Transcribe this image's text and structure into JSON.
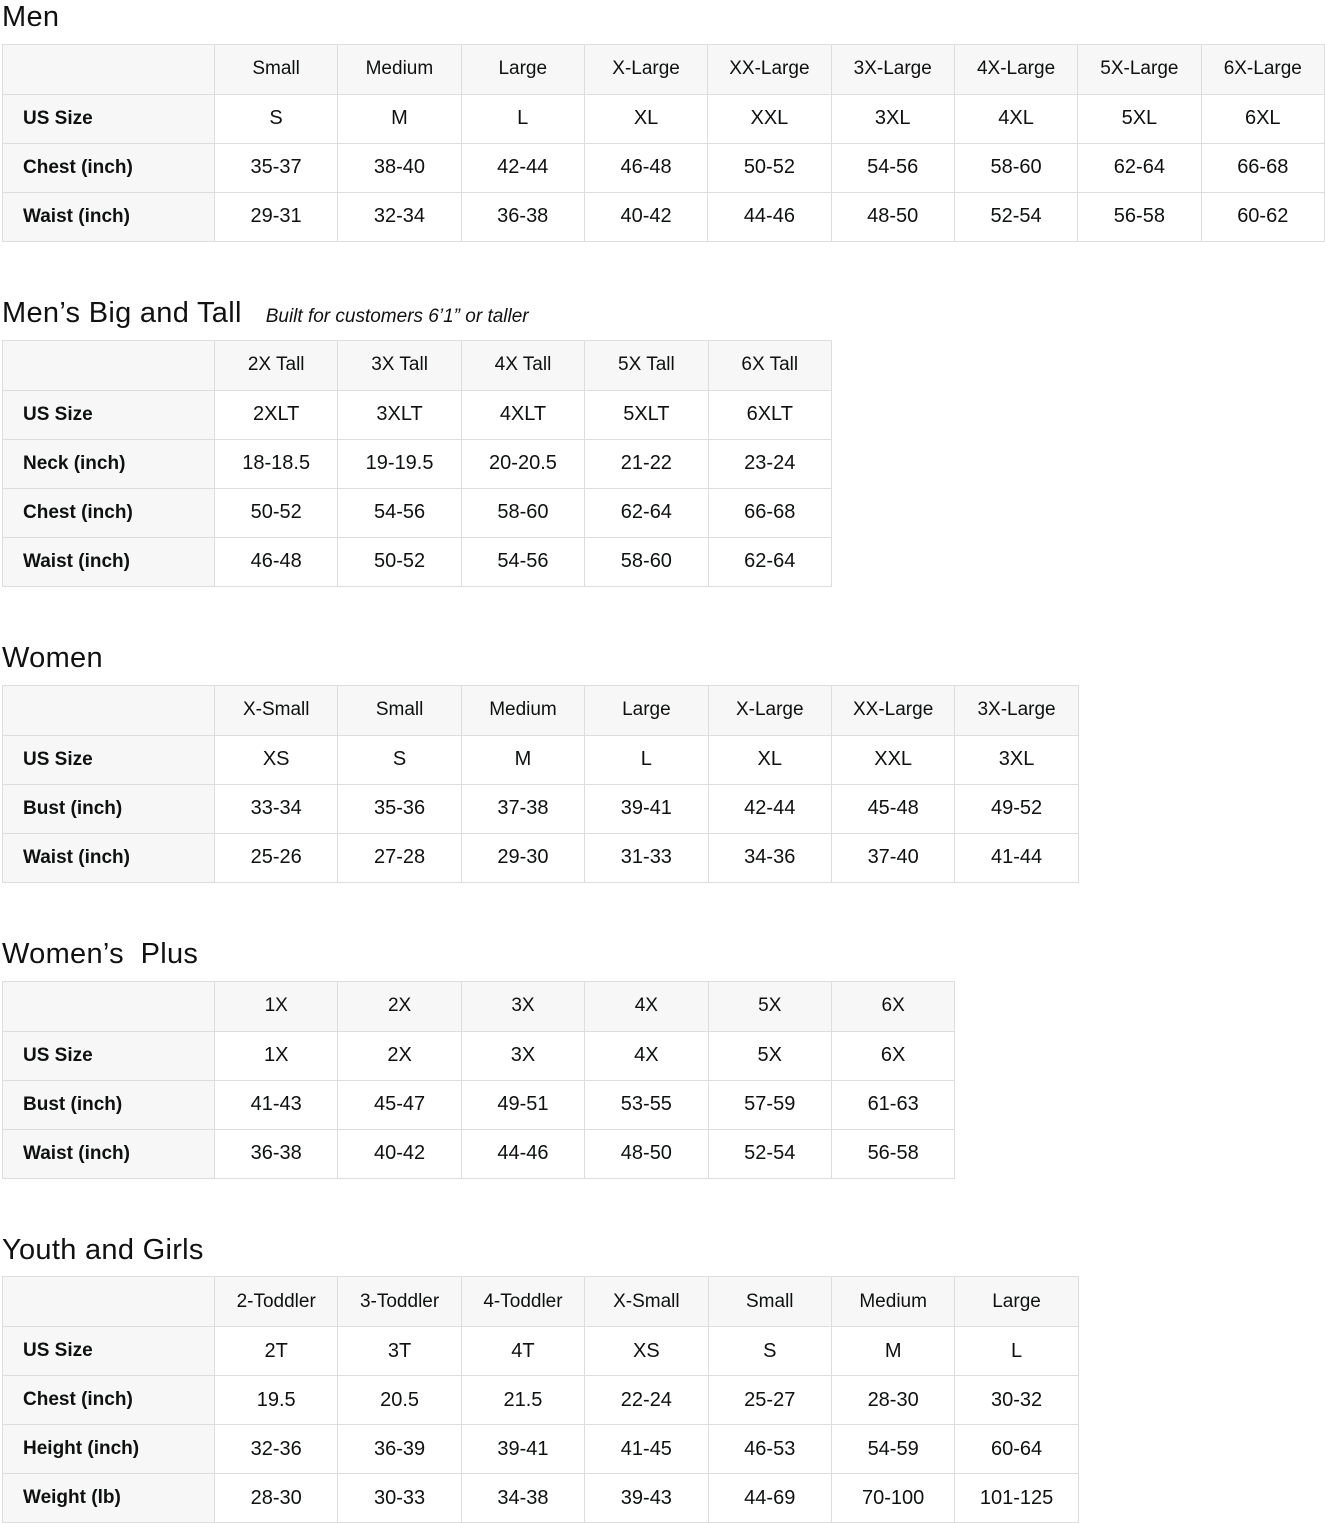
{
  "colors": {
    "header_bg": "#f7f7f7",
    "border": "#dddddd",
    "text": "#0f1111"
  },
  "sections": [
    {
      "id": "men",
      "title": "Men",
      "subtitle": "",
      "columns": [
        "Small",
        "Medium",
        "Large",
        "X-Large",
        "XX-Large",
        "3X-Large",
        "4X-Large",
        "5X-Large",
        "6X-Large"
      ],
      "rows": [
        {
          "label": "US Size",
          "values": [
            "S",
            "M",
            "L",
            "XL",
            "XXL",
            "3XL",
            "4XL",
            "5XL",
            "6XL"
          ]
        },
        {
          "label": "Chest (inch)",
          "values": [
            "35-37",
            "38-40",
            "42-44",
            "46-48",
            "50-52",
            "54-56",
            "58-60",
            "62-64",
            "66-68"
          ]
        },
        {
          "label": "Waist (inch)",
          "values": [
            "29-31",
            "32-34",
            "36-38",
            "40-42",
            "44-46",
            "48-50",
            "52-54",
            "56-58",
            "60-62"
          ]
        }
      ]
    },
    {
      "id": "mens-big-and-tall",
      "title": "Men’s Big and Tall",
      "subtitle": "Built for customers 6’1” or taller",
      "columns": [
        "2X Tall",
        "3X Tall",
        "4X Tall",
        "5X Tall",
        "6X Tall"
      ],
      "rows": [
        {
          "label": "US Size",
          "values": [
            "2XLT",
            "3XLT",
            "4XLT",
            "5XLT",
            "6XLT"
          ]
        },
        {
          "label": "Neck (inch)",
          "values": [
            "18-18.5",
            "19-19.5",
            "20-20.5",
            "21-22",
            "23-24"
          ]
        },
        {
          "label": "Chest (inch)",
          "values": [
            "50-52",
            "54-56",
            "58-60",
            "62-64",
            "66-68"
          ]
        },
        {
          "label": "Waist (inch)",
          "values": [
            "46-48",
            "50-52",
            "54-56",
            "58-60",
            "62-64"
          ]
        }
      ]
    },
    {
      "id": "women",
      "title": "Women",
      "subtitle": "",
      "columns": [
        "X-Small",
        "Small",
        "Medium",
        "Large",
        "X-Large",
        "XX-Large",
        "3X-Large"
      ],
      "rows": [
        {
          "label": "US Size",
          "values": [
            "XS",
            "S",
            "M",
            "L",
            "XL",
            "XXL",
            "3XL"
          ]
        },
        {
          "label": "Bust (inch)",
          "values": [
            "33-34",
            "35-36",
            "37-38",
            "39-41",
            "42-44",
            "45-48",
            "49-52"
          ]
        },
        {
          "label": "Waist (inch)",
          "values": [
            "25-26",
            "27-28",
            "29-30",
            "31-33",
            "34-36",
            "37-40",
            "41-44"
          ]
        }
      ]
    },
    {
      "id": "womens-plus",
      "title": "Women’s  Plus",
      "subtitle": "",
      "columns": [
        "1X",
        "2X",
        "3X",
        "4X",
        "5X",
        "6X"
      ],
      "rows": [
        {
          "label": "US Size",
          "values": [
            "1X",
            "2X",
            "3X",
            "4X",
            "5X",
            "6X"
          ]
        },
        {
          "label": "Bust (inch)",
          "values": [
            "41-43",
            "45-47",
            "49-51",
            "53-55",
            "57-59",
            "61-63"
          ]
        },
        {
          "label": "Waist (inch)",
          "values": [
            "36-38",
            "40-42",
            "44-46",
            "48-50",
            "52-54",
            "56-58"
          ]
        }
      ]
    },
    {
      "id": "youth-and-girls",
      "title": "Youth and Girls",
      "subtitle": "",
      "columns": [
        "2-Toddler",
        "3-Toddler",
        "4-Toddler",
        "X-Small",
        "Small",
        "Medium",
        "Large"
      ],
      "rows": [
        {
          "label": "US Size",
          "values": [
            "2T",
            "3T",
            "4T",
            "XS",
            "S",
            "M",
            "L"
          ]
        },
        {
          "label": "Chest (inch)",
          "values": [
            "19.5",
            "20.5",
            "21.5",
            "22-24",
            "25-27",
            "28-30",
            "30-32"
          ]
        },
        {
          "label": "Height (inch)",
          "values": [
            "32-36",
            "36-39",
            "39-41",
            "41-45",
            "46-53",
            "54-59",
            "60-64"
          ]
        },
        {
          "label": "Weight (lb)",
          "values": [
            "28-30",
            "30-33",
            "34-38",
            "39-43",
            "44-69",
            "70-100",
            "101-125"
          ]
        }
      ]
    }
  ]
}
